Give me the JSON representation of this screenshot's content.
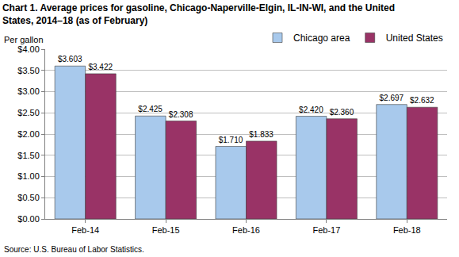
{
  "chart_data": {
    "type": "bar",
    "title": "Chart 1. Average prices for gasoline, Chicago-Naperville-Elgin, IL-IN-WI, and the United States, 2014–18 (as of February)",
    "y_label": "Per gallon",
    "annotations": [
      "Source: U.S. Bureau of Labor Statistics."
    ],
    "categories": [
      "Feb-14",
      "Feb-15",
      "Feb-16",
      "Feb-17",
      "Feb-18"
    ],
    "series": [
      {
        "name": "Chicago area",
        "color": "#a8c9ec",
        "values": [
          3.603,
          2.425,
          1.71,
          2.42,
          2.697
        ],
        "value_labels": [
          "$3.603",
          "$2.425",
          "$1.710",
          "$2.420",
          "$2.697"
        ]
      },
      {
        "name": "United States",
        "color": "#993366",
        "values": [
          3.422,
          2.308,
          1.833,
          2.36,
          2.632
        ],
        "value_labels": [
          "$3.422",
          "$2.308",
          "$1.833",
          "$2.360",
          "$2.632"
        ]
      }
    ],
    "ylim": [
      0,
      4
    ],
    "yticks": [
      {
        "value": 0,
        "label": "$0.00"
      },
      {
        "value": 0.5,
        "label": "$0.50"
      },
      {
        "value": 1,
        "label": "$1.00"
      },
      {
        "value": 1.5,
        "label": "$1.50"
      },
      {
        "value": 2,
        "label": "$2.00"
      },
      {
        "value": 2.5,
        "label": "$2.50"
      },
      {
        "value": 3,
        "label": "$3.00"
      },
      {
        "value": 3.5,
        "label": "$3.50"
      },
      {
        "value": 4,
        "label": "$4.00"
      }
    ],
    "grid": true,
    "legend": "top right",
    "data_labels": true
  }
}
